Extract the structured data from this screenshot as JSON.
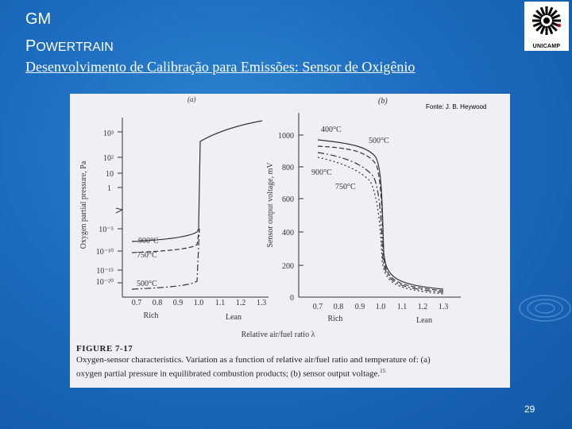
{
  "header": {
    "title": "GM",
    "subtitle_first": "P",
    "subtitle_rest": "OWERTRAIN",
    "logo_text": "UNICAMP"
  },
  "slide_title": "Desenvolvimento de Calibração para Emissões: Sensor de Oxigênio",
  "source": "Fonte: J. B. Heywood",
  "figure": {
    "panel_a_label": "(a)",
    "panel_b_label": "(b)",
    "ylabel_a": "Oxygen partial pressure, Pa",
    "ylabel_b": "Sensor output voltage, mV",
    "yticks_a": [
      "10³",
      "10²",
      "10",
      "1",
      "10⁻⁵",
      "10⁻¹⁰",
      "10⁻¹⁵",
      "10⁻²⁰"
    ],
    "yticks_b": [
      "1000",
      "800",
      "600",
      "400",
      "200",
      "0"
    ],
    "xticks": [
      "0.7",
      "0.8",
      "0.9",
      "1.0",
      "1.1",
      "1.2",
      "1.3"
    ],
    "rich": "Rich",
    "lean": "Lean",
    "xlabel": "Relative air/fuel ratio λ",
    "curves_a": [
      "900°C",
      "750°C",
      "500°C"
    ],
    "curves_b": [
      "400°C",
      "500°C",
      "900°C",
      "750°C"
    ],
    "caption_label": "FIGURE 7-17",
    "caption_line1": "Oxygen-sensor characteristics. Variation as a function of relative air/fuel ratio and temperature of: (a)",
    "caption_line2": "oxygen partial pressure in equilibrated combustion products; (b) sensor output voltage.",
    "caption_ref": "15"
  },
  "page_number": "29"
}
